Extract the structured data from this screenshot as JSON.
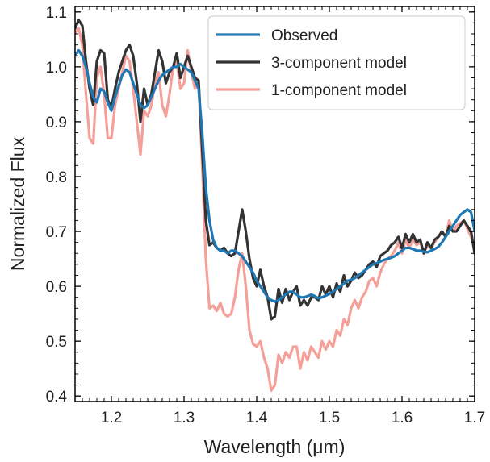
{
  "chart_data": {
    "type": "line",
    "xlabel": "Wavelength (μm)",
    "ylabel": "Normalized Flux",
    "xlim": [
      1.15,
      1.7
    ],
    "ylim": [
      0.39,
      1.11
    ],
    "x_ticks": [
      1.2,
      1.3,
      1.4,
      1.5,
      1.6,
      1.7
    ],
    "x_tick_labels": [
      "1.2",
      "1.3",
      "1.4",
      "1.5",
      "1.6",
      "1.7"
    ],
    "y_ticks": [
      0.4,
      0.5,
      0.6,
      0.7,
      0.8,
      0.9,
      1.0,
      1.1
    ],
    "y_tick_labels": [
      "0.4",
      "0.5",
      "0.6",
      "0.7",
      "0.8",
      "0.9",
      "1.0",
      "1.1"
    ],
    "grid": false,
    "legend_position": "top-right",
    "series": [
      {
        "name": "Observed",
        "color": "#1f77b4",
        "x": [
          1.15,
          1.155,
          1.16,
          1.165,
          1.17,
          1.175,
          1.18,
          1.185,
          1.19,
          1.195,
          1.2,
          1.205,
          1.21,
          1.215,
          1.22,
          1.225,
          1.23,
          1.235,
          1.24,
          1.245,
          1.25,
          1.255,
          1.26,
          1.265,
          1.27,
          1.275,
          1.28,
          1.285,
          1.29,
          1.295,
          1.3,
          1.305,
          1.31,
          1.315,
          1.32,
          1.325,
          1.33,
          1.335,
          1.34,
          1.345,
          1.35,
          1.355,
          1.36,
          1.365,
          1.37,
          1.375,
          1.38,
          1.385,
          1.39,
          1.395,
          1.4,
          1.405,
          1.41,
          1.415,
          1.42,
          1.425,
          1.43,
          1.435,
          1.44,
          1.445,
          1.45,
          1.455,
          1.46,
          1.465,
          1.47,
          1.475,
          1.48,
          1.485,
          1.49,
          1.495,
          1.5,
          1.505,
          1.51,
          1.515,
          1.52,
          1.525,
          1.53,
          1.535,
          1.54,
          1.545,
          1.55,
          1.555,
          1.56,
          1.565,
          1.57,
          1.575,
          1.58,
          1.585,
          1.59,
          1.595,
          1.6,
          1.605,
          1.61,
          1.615,
          1.62,
          1.625,
          1.63,
          1.635,
          1.64,
          1.645,
          1.65,
          1.655,
          1.66,
          1.665,
          1.67,
          1.675,
          1.68,
          1.685,
          1.69,
          1.695,
          1.7
        ],
        "y": [
          1.02,
          1.03,
          1.02,
          1.0,
          0.97,
          0.945,
          0.935,
          0.96,
          0.955,
          0.935,
          0.92,
          0.945,
          0.965,
          0.985,
          0.995,
          0.99,
          0.97,
          0.95,
          0.93,
          0.925,
          0.93,
          0.945,
          0.96,
          0.975,
          0.985,
          0.99,
          0.995,
          1.0,
          1.0,
          1.005,
          1.0,
          0.995,
          0.99,
          0.975,
          0.96,
          0.88,
          0.78,
          0.72,
          0.685,
          0.67,
          0.665,
          0.665,
          0.66,
          0.665,
          0.665,
          0.66,
          0.655,
          0.645,
          0.635,
          0.625,
          0.61,
          0.6,
          0.59,
          0.58,
          0.575,
          0.572,
          0.575,
          0.58,
          0.585,
          0.59,
          0.59,
          0.585,
          0.58,
          0.58,
          0.582,
          0.585,
          0.582,
          0.578,
          0.58,
          0.583,
          0.586,
          0.59,
          0.595,
          0.6,
          0.605,
          0.61,
          0.612,
          0.615,
          0.62,
          0.625,
          0.63,
          0.635,
          0.64,
          0.642,
          0.645,
          0.648,
          0.65,
          0.652,
          0.655,
          0.66,
          0.665,
          0.67,
          0.67,
          0.668,
          0.665,
          0.665,
          0.663,
          0.662,
          0.665,
          0.668,
          0.672,
          0.68,
          0.69,
          0.7,
          0.71,
          0.72,
          0.73,
          0.735,
          0.74,
          0.735,
          0.7
        ]
      },
      {
        "name": "3-component model",
        "color": "#333333",
        "x": [
          1.15,
          1.155,
          1.16,
          1.165,
          1.17,
          1.175,
          1.18,
          1.185,
          1.19,
          1.195,
          1.2,
          1.205,
          1.21,
          1.215,
          1.22,
          1.225,
          1.23,
          1.235,
          1.24,
          1.245,
          1.25,
          1.255,
          1.26,
          1.265,
          1.27,
          1.275,
          1.28,
          1.285,
          1.29,
          1.295,
          1.3,
          1.305,
          1.31,
          1.315,
          1.32,
          1.325,
          1.33,
          1.335,
          1.34,
          1.345,
          1.35,
          1.355,
          1.36,
          1.365,
          1.37,
          1.375,
          1.38,
          1.385,
          1.39,
          1.395,
          1.4,
          1.405,
          1.41,
          1.415,
          1.42,
          1.425,
          1.43,
          1.435,
          1.44,
          1.445,
          1.45,
          1.455,
          1.46,
          1.465,
          1.47,
          1.475,
          1.48,
          1.485,
          1.49,
          1.495,
          1.5,
          1.505,
          1.51,
          1.515,
          1.52,
          1.525,
          1.53,
          1.535,
          1.54,
          1.545,
          1.55,
          1.555,
          1.56,
          1.565,
          1.57,
          1.575,
          1.58,
          1.585,
          1.59,
          1.595,
          1.6,
          1.605,
          1.61,
          1.615,
          1.62,
          1.625,
          1.63,
          1.635,
          1.64,
          1.645,
          1.65,
          1.655,
          1.66,
          1.665,
          1.67,
          1.675,
          1.68,
          1.685,
          1.69,
          1.695,
          1.7
        ],
        "y": [
          1.07,
          1.085,
          1.075,
          1.01,
          0.96,
          0.93,
          1.01,
          1.03,
          1.025,
          0.94,
          0.925,
          0.96,
          0.99,
          1.01,
          1.03,
          1.04,
          1.02,
          0.97,
          0.9,
          0.96,
          0.93,
          0.95,
          0.99,
          1.03,
          1.01,
          0.97,
          0.99,
          1.0,
          1.025,
          0.98,
          1.0,
          1.02,
          1.0,
          0.98,
          0.975,
          0.85,
          0.72,
          0.675,
          0.68,
          0.67,
          0.665,
          0.67,
          0.66,
          0.655,
          0.66,
          0.7,
          0.74,
          0.7,
          0.65,
          0.615,
          0.6,
          0.63,
          0.6,
          0.58,
          0.54,
          0.545,
          0.595,
          0.57,
          0.595,
          0.575,
          0.59,
          0.6,
          0.565,
          0.575,
          0.565,
          0.58,
          0.58,
          0.575,
          0.6,
          0.585,
          0.6,
          0.58,
          0.605,
          0.59,
          0.62,
          0.6,
          0.61,
          0.625,
          0.615,
          0.62,
          0.63,
          0.64,
          0.645,
          0.635,
          0.655,
          0.66,
          0.665,
          0.675,
          0.68,
          0.69,
          0.67,
          0.695,
          0.68,
          0.695,
          0.68,
          0.685,
          0.66,
          0.68,
          0.67,
          0.685,
          0.69,
          0.7,
          0.69,
          0.71,
          0.7,
          0.7,
          0.71,
          0.72,
          0.71,
          0.7,
          0.66
        ]
      },
      {
        "name": "1-component model",
        "color": "#f4a098",
        "x": [
          1.15,
          1.155,
          1.16,
          1.165,
          1.17,
          1.175,
          1.18,
          1.185,
          1.19,
          1.195,
          1.2,
          1.205,
          1.21,
          1.215,
          1.22,
          1.225,
          1.23,
          1.235,
          1.24,
          1.245,
          1.25,
          1.255,
          1.26,
          1.265,
          1.27,
          1.275,
          1.28,
          1.285,
          1.29,
          1.295,
          1.3,
          1.305,
          1.31,
          1.315,
          1.32,
          1.325,
          1.33,
          1.335,
          1.34,
          1.345,
          1.35,
          1.355,
          1.36,
          1.365,
          1.37,
          1.375,
          1.38,
          1.385,
          1.39,
          1.395,
          1.4,
          1.405,
          1.41,
          1.415,
          1.42,
          1.425,
          1.43,
          1.435,
          1.44,
          1.445,
          1.45,
          1.455,
          1.46,
          1.465,
          1.47,
          1.475,
          1.48,
          1.485,
          1.49,
          1.495,
          1.5,
          1.505,
          1.51,
          1.515,
          1.52,
          1.525,
          1.53,
          1.535,
          1.54,
          1.545,
          1.55,
          1.555,
          1.56,
          1.565,
          1.57,
          1.575,
          1.58,
          1.585,
          1.59,
          1.595,
          1.6,
          1.605,
          1.61,
          1.615,
          1.62,
          1.625,
          1.63,
          1.635,
          1.64,
          1.645,
          1.65,
          1.655,
          1.66,
          1.665,
          1.67,
          1.675,
          1.68,
          1.685,
          1.69,
          1.695,
          1.7
        ],
        "y": [
          1.06,
          1.07,
          1.04,
          0.95,
          0.87,
          0.86,
          0.98,
          1.0,
          0.95,
          0.87,
          0.87,
          0.93,
          0.96,
          0.99,
          1.02,
          1.01,
          0.96,
          0.9,
          0.84,
          0.92,
          0.91,
          0.93,
          0.97,
          0.99,
          0.93,
          0.91,
          0.95,
          1.0,
          1.01,
          0.96,
          0.97,
          1.03,
          0.99,
          0.96,
          0.97,
          0.82,
          0.65,
          0.56,
          0.565,
          0.555,
          0.57,
          0.55,
          0.545,
          0.55,
          0.58,
          0.63,
          0.66,
          0.6,
          0.52,
          0.495,
          0.49,
          0.5,
          0.47,
          0.45,
          0.41,
          0.42,
          0.475,
          0.46,
          0.48,
          0.47,
          0.49,
          0.49,
          0.45,
          0.48,
          0.465,
          0.49,
          0.48,
          0.47,
          0.5,
          0.485,
          0.5,
          0.49,
          0.52,
          0.51,
          0.54,
          0.53,
          0.56,
          0.575,
          0.56,
          0.58,
          0.59,
          0.61,
          0.615,
          0.6,
          0.625,
          0.64,
          0.65,
          0.655,
          0.665,
          0.68,
          0.66,
          0.685,
          0.67,
          0.685,
          0.675,
          0.68,
          0.66,
          0.675,
          0.67,
          0.68,
          0.69,
          0.7,
          0.69,
          0.72,
          0.7,
          0.71,
          0.715,
          0.72,
          0.705,
          0.69,
          0.67
        ]
      }
    ]
  }
}
